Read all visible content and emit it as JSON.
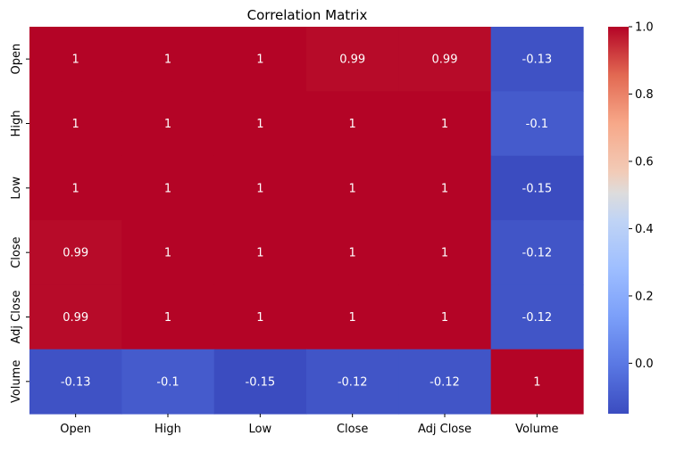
{
  "chart_data": {
    "type": "heatmap",
    "title": "Correlation Matrix",
    "row_labels": [
      "Open",
      "High",
      "Low",
      "Close",
      "Adj Close",
      "Volume"
    ],
    "col_labels": [
      "Open",
      "High",
      "Low",
      "Close",
      "Adj Close",
      "Volume"
    ],
    "values": [
      [
        1.0,
        1.0,
        1.0,
        0.99,
        0.99,
        -0.13
      ],
      [
        1.0,
        1.0,
        1.0,
        1.0,
        1.0,
        -0.1
      ],
      [
        1.0,
        1.0,
        1.0,
        1.0,
        1.0,
        -0.15
      ],
      [
        0.99,
        1.0,
        1.0,
        1.0,
        1.0,
        -0.12
      ],
      [
        0.99,
        1.0,
        1.0,
        1.0,
        1.0,
        -0.12
      ],
      [
        -0.13,
        -0.1,
        -0.15,
        -0.12,
        -0.12,
        1.0
      ]
    ],
    "annotations": [
      [
        "1",
        "1",
        "1",
        "0.99",
        "0.99",
        "-0.13"
      ],
      [
        "1",
        "1",
        "1",
        "1",
        "1",
        "-0.1"
      ],
      [
        "1",
        "1",
        "1",
        "1",
        "1",
        "-0.15"
      ],
      [
        "0.99",
        "1",
        "1",
        "1",
        "1",
        "-0.12"
      ],
      [
        "0.99",
        "1",
        "1",
        "1",
        "1",
        "-0.12"
      ],
      [
        "-0.13",
        "-0.1",
        "-0.15",
        "-0.12",
        "-0.12",
        "1"
      ]
    ],
    "colormap": "coolwarm",
    "colorbar": {
      "range": [
        -0.15,
        1.0
      ],
      "ticks": [
        0.0,
        0.2,
        0.4,
        0.6,
        0.8,
        1.0
      ],
      "tick_labels": [
        "0.0",
        "0.2",
        "0.4",
        "0.6",
        "0.8",
        "1.0"
      ]
    }
  }
}
